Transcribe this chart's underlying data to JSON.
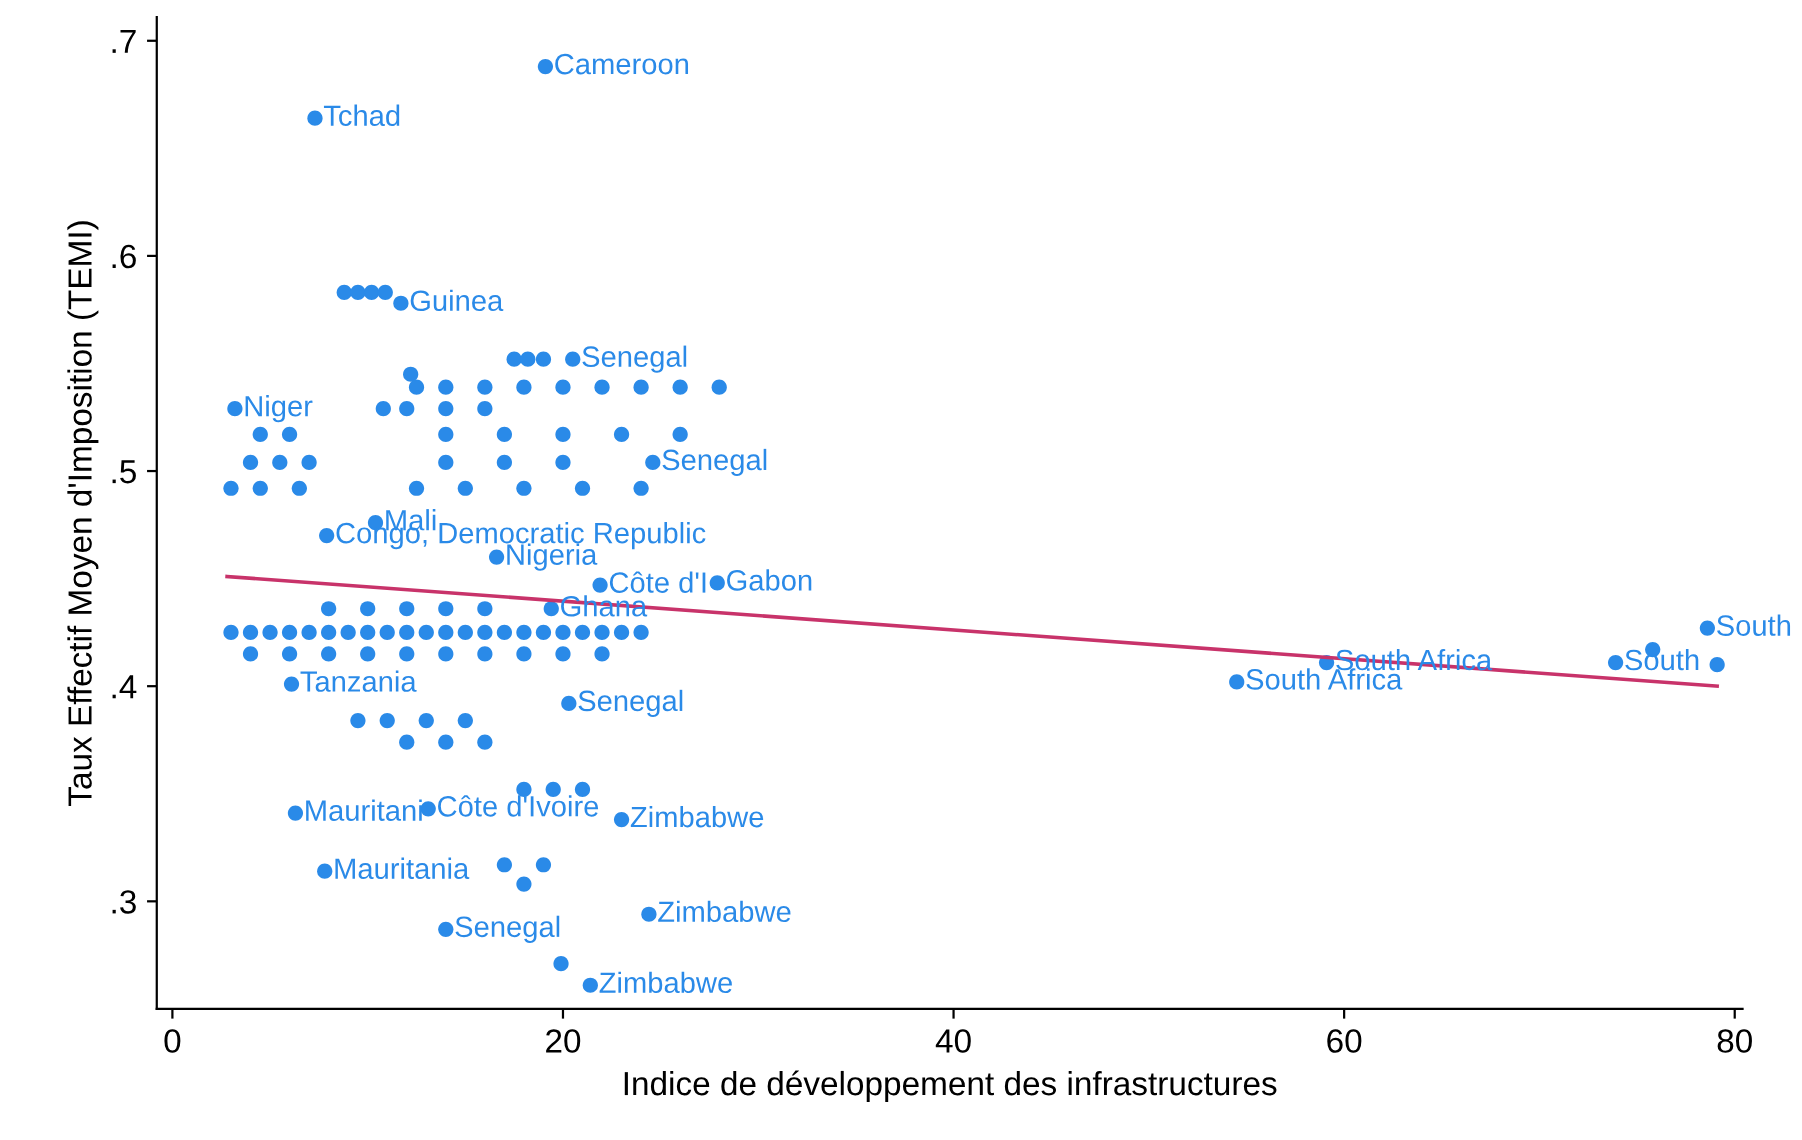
{
  "chart_data": {
    "type": "scatter",
    "xlabel": "Indice de développement des infrastructures",
    "ylabel": "Taux Effectif Moyen d'Imposition (TEMI)",
    "xlim": [
      -0.8,
      80.4
    ],
    "ylim": [
      0.25,
      0.711
    ],
    "xticks": [
      0,
      20,
      40,
      60,
      80
    ],
    "yticks": [
      {
        "value": 0.3,
        "label": ".3"
      },
      {
        "value": 0.4,
        "label": ".4"
      },
      {
        "value": 0.5,
        "label": ".5"
      },
      {
        "value": 0.6,
        "label": ".6"
      },
      {
        "value": 0.7,
        "label": ".7"
      }
    ],
    "grid": false,
    "legend": false,
    "marker": "circle",
    "series": [
      {
        "color": "#2a8ae8",
        "x": [
          19.1,
          7.3,
          11.7,
          20.5,
          3.2,
          24.6,
          10.4,
          7.9,
          16.6,
          21.9,
          27.9,
          19.4,
          6.1,
          20.3,
          13.1,
          6.3,
          23.0,
          7.8,
          24.4,
          14.0,
          21.4,
          59.1,
          73.9,
          78.6,
          54.5,
          8.8,
          9.5,
          10.2,
          10.9,
          17.5,
          18.2,
          19.0,
          12.2,
          12.5,
          14,
          16,
          18,
          20,
          22,
          24,
          26,
          28,
          10.8,
          12,
          14,
          16,
          4.5,
          6,
          14,
          17,
          20,
          23,
          26,
          4,
          5.5,
          7,
          14,
          17,
          20,
          3,
          4.5,
          6.5,
          12.5,
          15,
          18,
          21,
          24,
          8,
          10,
          12,
          14,
          16,
          3,
          4,
          5,
          6,
          7,
          8,
          9,
          10,
          11,
          12,
          13,
          14,
          15,
          16,
          17,
          18,
          19,
          20,
          21,
          22,
          23,
          24,
          4,
          6,
          8,
          10,
          12,
          14,
          16,
          18,
          20,
          22,
          9.5,
          11,
          13,
          15,
          12,
          14,
          16,
          18,
          19.5,
          21,
          17,
          19,
          18,
          19.9,
          75.8,
          79.1
        ],
        "values": [
          0.688,
          0.664,
          0.578,
          0.552,
          0.529,
          0.504,
          0.476,
          0.47,
          0.46,
          0.447,
          0.448,
          0.436,
          0.401,
          0.392,
          0.343,
          0.341,
          0.338,
          0.314,
          0.294,
          0.287,
          0.261,
          0.411,
          0.411,
          0.427,
          0.402,
          0.583,
          0.583,
          0.583,
          0.583,
          0.552,
          0.552,
          0.552,
          0.545,
          0.539,
          0.539,
          0.539,
          0.539,
          0.539,
          0.539,
          0.539,
          0.539,
          0.539,
          0.529,
          0.529,
          0.529,
          0.529,
          0.517,
          0.517,
          0.517,
          0.517,
          0.517,
          0.517,
          0.517,
          0.504,
          0.504,
          0.504,
          0.504,
          0.504,
          0.504,
          0.492,
          0.492,
          0.492,
          0.492,
          0.492,
          0.492,
          0.492,
          0.492,
          0.436,
          0.436,
          0.436,
          0.436,
          0.436,
          0.425,
          0.425,
          0.425,
          0.425,
          0.425,
          0.425,
          0.425,
          0.425,
          0.425,
          0.425,
          0.425,
          0.425,
          0.425,
          0.425,
          0.425,
          0.425,
          0.425,
          0.425,
          0.425,
          0.425,
          0.425,
          0.425,
          0.415,
          0.415,
          0.415,
          0.415,
          0.415,
          0.415,
          0.415,
          0.415,
          0.415,
          0.415,
          0.384,
          0.384,
          0.384,
          0.384,
          0.374,
          0.374,
          0.374,
          0.352,
          0.352,
          0.352,
          0.317,
          0.317,
          0.308,
          0.271,
          0.417,
          0.41
        ]
      },
      {
        "type": "line",
        "marker": "none",
        "color": "#c8336a",
        "x": [
          2.8,
          79.1
        ],
        "values": [
          0.451,
          0.4
        ]
      }
    ],
    "annotations": [
      {
        "text": "Cameroon",
        "x": 19.1,
        "y": 0.688
      },
      {
        "text": "Tchad",
        "x": 7.3,
        "y": 0.664
      },
      {
        "text": "Guinea",
        "x": 11.7,
        "y": 0.578
      },
      {
        "text": "Senegal",
        "x": 20.5,
        "y": 0.552
      },
      {
        "text": "Niger",
        "x": 3.2,
        "y": 0.529
      },
      {
        "text": "Senegal",
        "x": 24.6,
        "y": 0.504
      },
      {
        "text": "Mali",
        "x": 10.4,
        "y": 0.476
      },
      {
        "text": "Congo, Democratic Republic",
        "x": 7.9,
        "y": 0.47
      },
      {
        "text": "Nigeria",
        "x": 16.6,
        "y": 0.46
      },
      {
        "text": "Côte d'I",
        "x": 21.9,
        "y": 0.447
      },
      {
        "text": "Gabon",
        "x": 27.9,
        "y": 0.448
      },
      {
        "text": "Ghana",
        "x": 19.4,
        "y": 0.436
      },
      {
        "text": "Tanzania",
        "x": 6.1,
        "y": 0.401
      },
      {
        "text": "Senegal",
        "x": 20.3,
        "y": 0.392
      },
      {
        "text": "Côte d'Ivoire",
        "x": 13.1,
        "y": 0.343
      },
      {
        "text": "Mauritani",
        "x": 6.3,
        "y": 0.341
      },
      {
        "text": "Zimbabwe",
        "x": 23.0,
        "y": 0.338
      },
      {
        "text": "Mauritania",
        "x": 7.8,
        "y": 0.314
      },
      {
        "text": "Zimbabwe",
        "x": 24.4,
        "y": 0.294
      },
      {
        "text": "Senegal",
        "x": 14.0,
        "y": 0.287
      },
      {
        "text": "Zimbabwe",
        "x": 21.4,
        "y": 0.261
      },
      {
        "text": "South Africa",
        "x": 59.1,
        "y": 0.411
      },
      {
        "text": "South",
        "x": 73.9,
        "y": 0.411
      },
      {
        "text": "South",
        "x": 78.6,
        "y": 0.427
      },
      {
        "text": "South Africa",
        "x": 54.5,
        "y": 0.402
      }
    ]
  }
}
